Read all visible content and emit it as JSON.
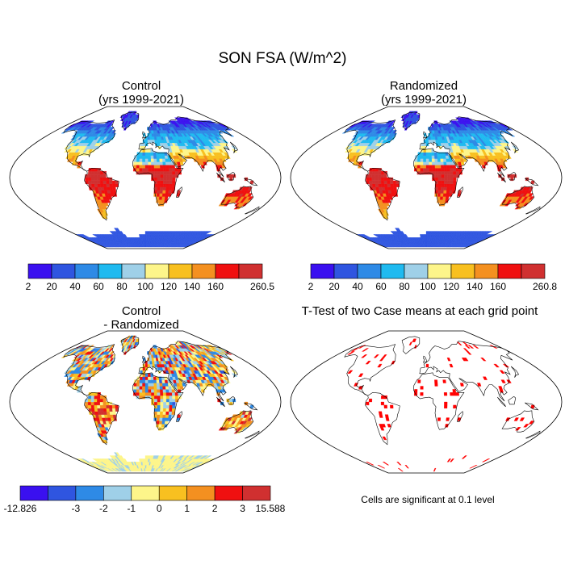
{
  "title": "SON FSA (W/m^2)",
  "panels": [
    {
      "id": "control",
      "title_lines": [
        "Control",
        "(yrs 1999-2021)"
      ],
      "palette": "pos"
    },
    {
      "id": "randomized",
      "title_lines": [
        "Randomized",
        "(yrs 1999-2021)"
      ],
      "palette": "pos"
    },
    {
      "id": "diff",
      "title_lines": [
        "Control",
        "- Randomized"
      ],
      "palette": "diff"
    },
    {
      "id": "ttest",
      "title_lines": [
        "T-Test of two Case means at each grid point"
      ],
      "palette": "sig"
    }
  ],
  "colorbars": [
    {
      "id": "cb-control",
      "labels": [
        "2",
        "20",
        "40",
        "60",
        "80",
        "100",
        "120",
        "140",
        "160",
        "260.5"
      ],
      "colors": [
        "#3a10f0",
        "#2f55e0",
        "#2e8ae6",
        "#1fbaf0",
        "#9fd0e8",
        "#fdf58a",
        "#f8c020",
        "#f49020",
        "#f01010",
        "#d03030"
      ]
    },
    {
      "id": "cb-randomized",
      "labels": [
        "2",
        "20",
        "40",
        "60",
        "80",
        "100",
        "120",
        "140",
        "160",
        "260.8"
      ],
      "colors": [
        "#3a10f0",
        "#2f55e0",
        "#2e8ae6",
        "#1fbaf0",
        "#9fd0e8",
        "#fdf58a",
        "#f8c020",
        "#f49020",
        "#f01010",
        "#d03030"
      ]
    },
    {
      "id": "cb-diff",
      "labels": [
        "-12.826",
        "-3",
        "-2",
        "-1",
        "0",
        "1",
        "2",
        "3",
        "15.588"
      ],
      "colors": [
        "#3a10f0",
        "#2f55e0",
        "#2e8ae6",
        "#9fd0e8",
        "#fdf58a",
        "#f8c020",
        "#f49020",
        "#f01010",
        "#d03030"
      ]
    }
  ],
  "significance_note": "Cells are significant at 0.1 level"
}
